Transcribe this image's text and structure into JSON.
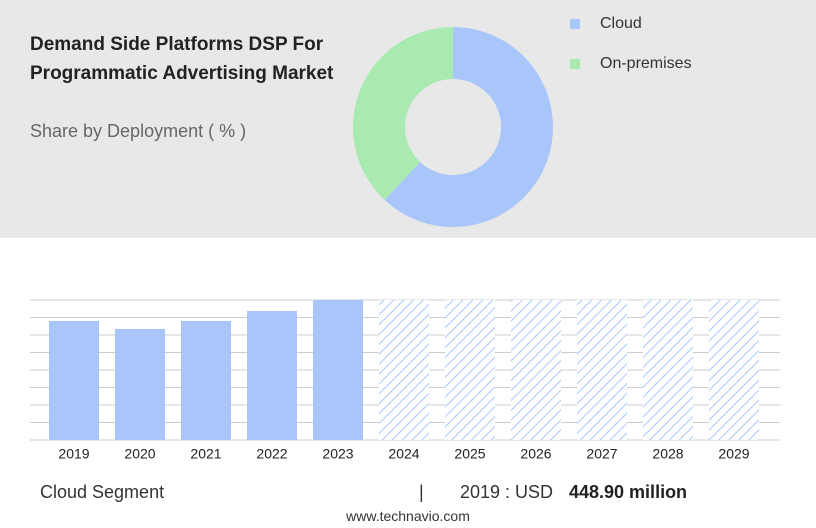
{
  "chart_data": [
    {
      "type": "donut",
      "title": "Demand Side Platforms DSP For Programmatic Advertising Market",
      "subtitle": "Share by Deployment ( % )",
      "categories": [
        "Cloud",
        "On-premises"
      ],
      "values": [
        62,
        38
      ],
      "colors": [
        "#a9c6fb",
        "#a8eab0"
      ]
    },
    {
      "type": "bar",
      "categories": [
        "2019",
        "2020",
        "2021",
        "2022",
        "2023",
        "2024",
        "2025",
        "2026",
        "2027",
        "2028",
        "2029"
      ],
      "values": [
        448.9,
        418.7,
        448.9,
        486.6,
        528.1,
        null,
        null,
        null,
        null,
        null,
        null
      ],
      "color": "#a9c6fb",
      "ylim": [
        0,
        528.1
      ],
      "grid": true
    }
  ],
  "footer": {
    "segment": "Cloud Segment",
    "separator": "|",
    "year_label": "2019 : USD",
    "value_label": "448.90 million",
    "source": "www.technavio.com"
  }
}
